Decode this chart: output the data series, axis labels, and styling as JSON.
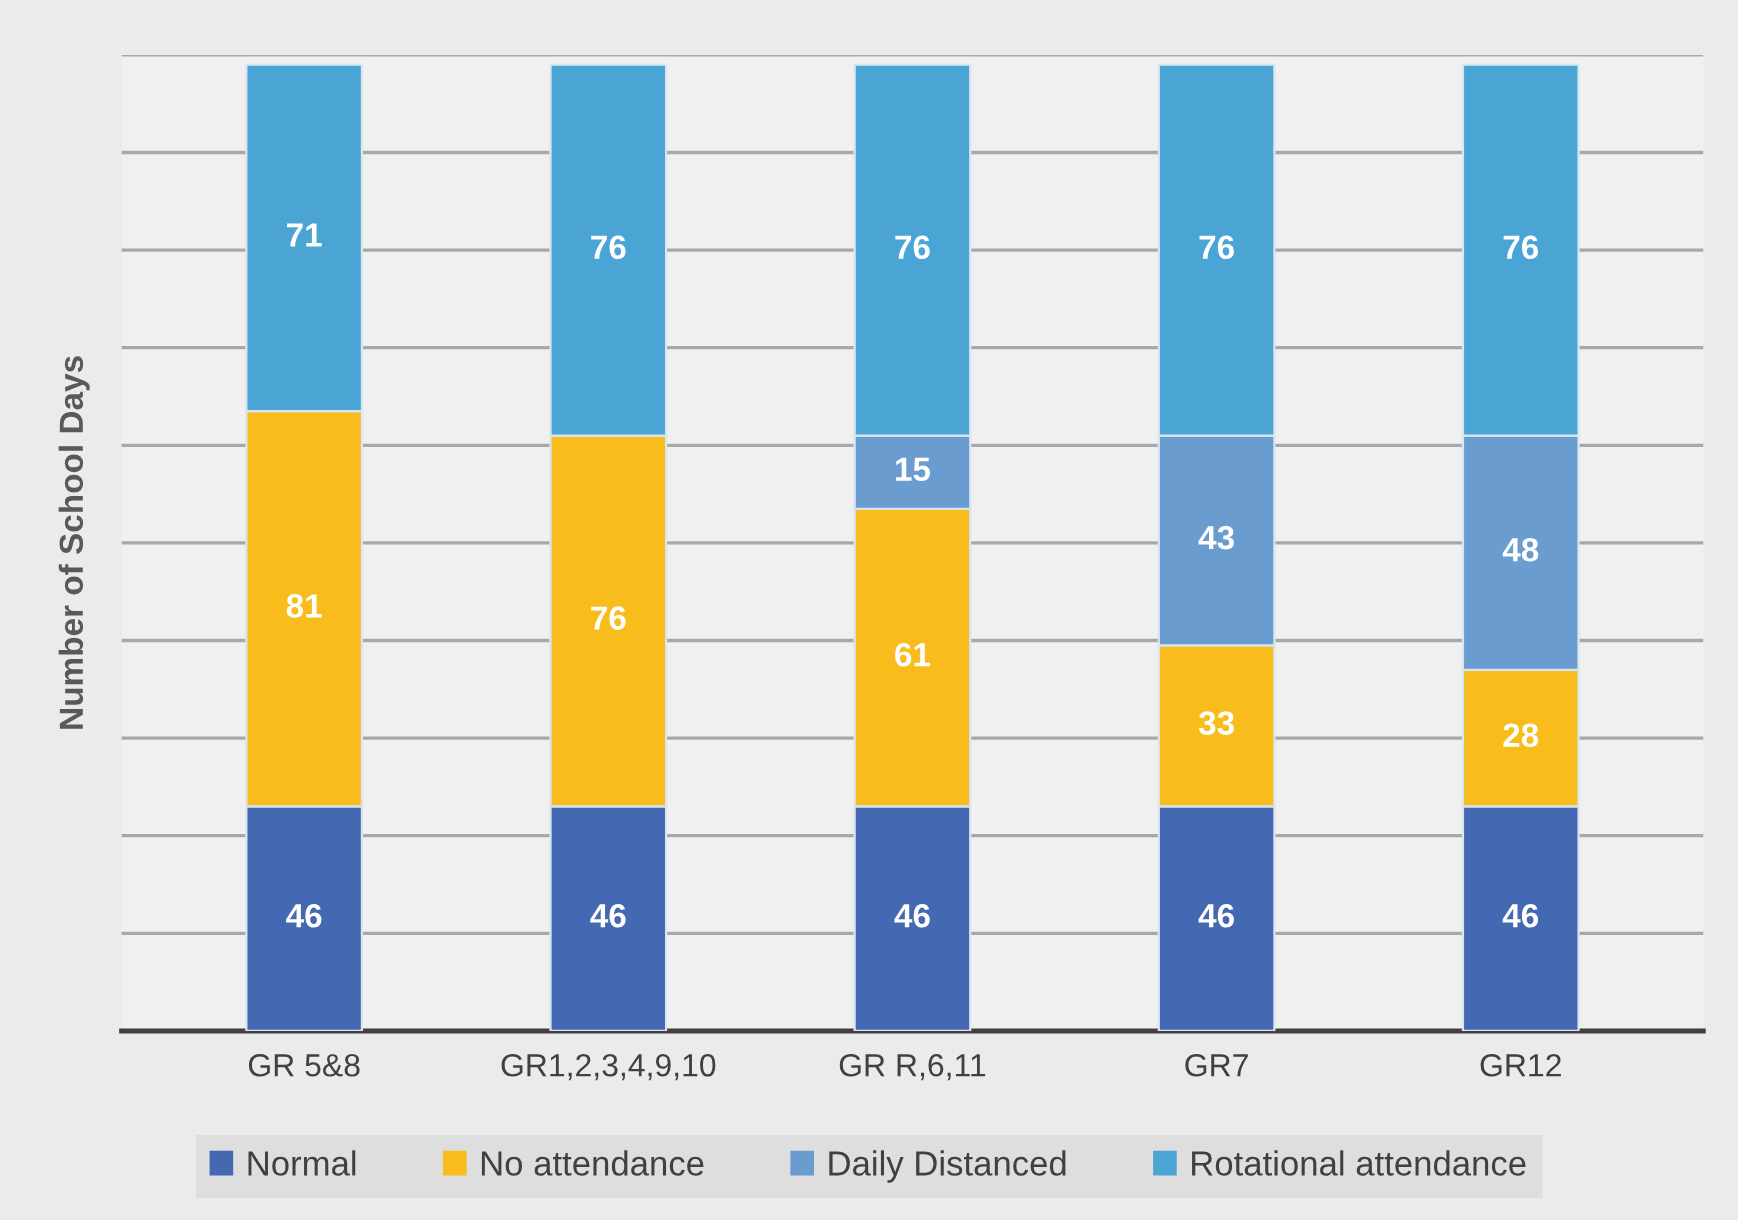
{
  "chart_data": {
    "type": "bar",
    "stacked": true,
    "ylabel": "Number of School Days",
    "categories": [
      "GR 5&8",
      "GR1,2,3,4,9,10",
      "GR R,6,11",
      "GR7",
      "GR12"
    ],
    "series": [
      {
        "name": "Normal",
        "color": "#4468b2",
        "values": [
          46,
          46,
          46,
          46,
          46
        ]
      },
      {
        "name": "No attendance",
        "color": "#f8bc1c",
        "values": [
          81,
          76,
          61,
          33,
          28
        ]
      },
      {
        "name": "Daily Distanced",
        "color": "#6a9ccf",
        "values": [
          null,
          null,
          15,
          43,
          48
        ]
      },
      {
        "name": "Rotational attendance",
        "color": "#4ba5d4",
        "values": [
          71,
          76,
          76,
          76,
          76
        ]
      }
    ],
    "ylim": [
      0,
      200
    ],
    "yticks": [
      {
        "value": 0,
        "label": null
      },
      {
        "value": 20,
        "label": null
      },
      {
        "value": 40,
        "label": null
      },
      {
        "value": 60,
        "label": null
      },
      {
        "value": 80,
        "label": null
      },
      {
        "value": 100,
        "label": null
      },
      {
        "value": 120,
        "label": null
      },
      {
        "value": 140,
        "label": null
      },
      {
        "value": 160,
        "label": null
      },
      {
        "value": 180,
        "label": null
      },
      {
        "value": 200,
        "label": null
      }
    ],
    "grid": "y",
    "legend": "bottom",
    "data_labels": true
  }
}
